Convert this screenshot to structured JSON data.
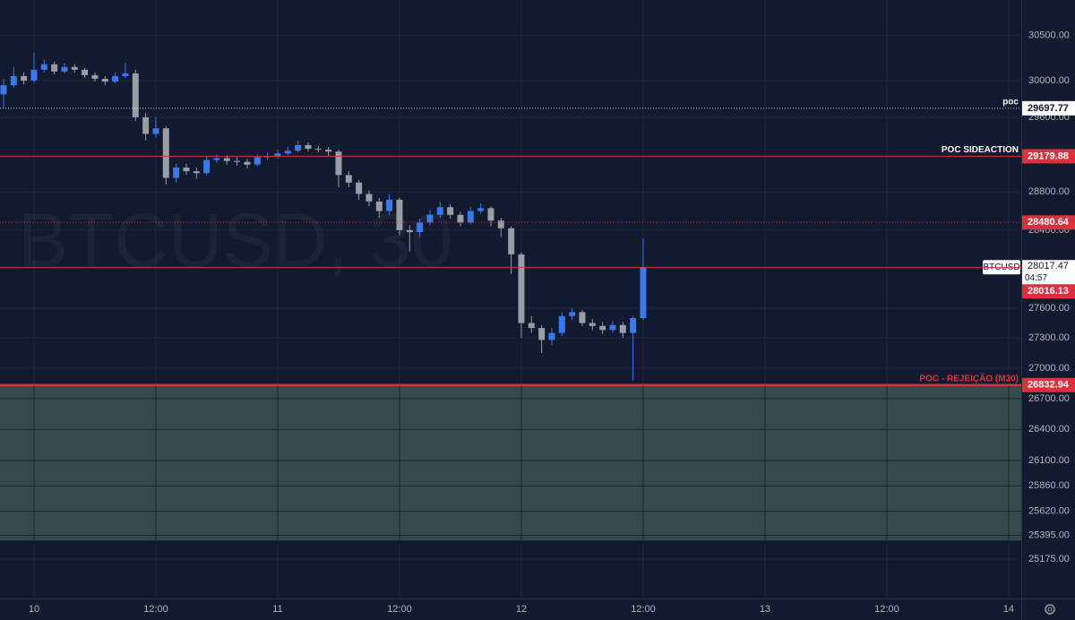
{
  "chart_data": {
    "type": "candlestick",
    "watermark": "BTCUSD, 30",
    "log": true,
    "grid": true,
    "up_color": "#3a78ee",
    "down_color": "#9a9ca6",
    "x": [
      -3,
      -2,
      -1,
      0,
      1,
      2,
      3,
      4,
      5,
      6,
      7,
      8,
      9,
      10,
      11,
      12,
      13,
      14,
      15,
      16,
      17,
      18,
      19,
      20,
      21,
      22,
      23,
      24,
      25,
      26,
      27,
      28,
      29,
      30,
      31,
      32,
      33,
      34,
      35,
      36,
      37,
      38,
      39,
      40,
      41,
      42,
      43,
      44,
      45,
      46,
      47,
      48,
      49,
      50,
      51,
      52,
      53,
      54,
      55,
      56,
      57,
      58,
      59,
      60
    ],
    "open": [
      29850,
      29950,
      30050,
      30000,
      30120,
      30180,
      30100,
      30150,
      30120,
      30060,
      30020,
      29990,
      30050,
      30080,
      29600,
      29420,
      29480,
      28950,
      29060,
      29020,
      29000,
      29140,
      29160,
      29130,
      29120,
      29090,
      29170,
      29180,
      29210,
      29240,
      29300,
      29260,
      29250,
      29230,
      28980,
      28900,
      28780,
      28700,
      28600,
      28720,
      28400,
      28380,
      28480,
      28560,
      28640,
      28560,
      28480,
      28600,
      28630,
      28500,
      28420,
      28150,
      27450,
      27400,
      27280,
      27350,
      27520,
      27560,
      27450,
      27420,
      27380,
      27430,
      27350,
      27500
    ],
    "high": [
      30020,
      30150,
      30090,
      30310,
      30230,
      30210,
      30190,
      30180,
      30140,
      30090,
      30050,
      30090,
      30200,
      30120,
      29650,
      29600,
      29500,
      29100,
      29100,
      29060,
      29180,
      29200,
      29190,
      29170,
      29150,
      29200,
      29220,
      29250,
      29280,
      29350,
      29330,
      29290,
      29280,
      29250,
      29020,
      28930,
      28820,
      28740,
      28780,
      28740,
      28450,
      28520,
      28610,
      28700,
      28670,
      28590,
      28640,
      28680,
      28650,
      28530,
      28440,
      28170,
      27520,
      27430,
      27400,
      27560,
      27600,
      27580,
      27490,
      27460,
      27470,
      27460,
      27520,
      28310
    ],
    "low": [
      29700,
      29920,
      29960,
      29980,
      30090,
      30070,
      30080,
      30090,
      30030,
      29990,
      29950,
      29970,
      30030,
      29560,
      29350,
      29380,
      28880,
      28900,
      28980,
      28940,
      28980,
      29110,
      29090,
      29080,
      29050,
      29070,
      29140,
      29160,
      29190,
      29220,
      29230,
      29220,
      29180,
      28850,
      28850,
      28720,
      28650,
      28530,
      28560,
      28350,
      28180,
      28330,
      28450,
      28530,
      28520,
      28440,
      28460,
      28570,
      28440,
      28330,
      27950,
      27300,
      27350,
      27150,
      27230,
      27320,
      27480,
      27420,
      27380,
      27340,
      27350,
      27300,
      26880,
      27480
    ],
    "close": [
      29950,
      30050,
      30000,
      30120,
      30180,
      30100,
      30150,
      30120,
      30060,
      30020,
      29990,
      30050,
      30080,
      29600,
      29420,
      29480,
      28950,
      29060,
      29020,
      29000,
      29140,
      29160,
      29130,
      29120,
      29090,
      29170,
      29180,
      29210,
      29240,
      29300,
      29260,
      29250,
      29230,
      28980,
      28900,
      28780,
      28700,
      28600,
      28720,
      28400,
      28380,
      28480,
      28560,
      28640,
      28560,
      28480,
      28600,
      28630,
      28500,
      28420,
      28150,
      27450,
      27400,
      27280,
      27350,
      27520,
      27560,
      27450,
      27420,
      27380,
      27430,
      27350,
      27500,
      28017.47
    ],
    "xlim": [
      -3.35,
      97.24
    ],
    "xticks": [
      {
        "value": 0,
        "label": "10"
      },
      {
        "value": 12,
        "label": "12:00"
      },
      {
        "value": 24,
        "label": "11"
      },
      {
        "value": 36,
        "label": "12:00"
      },
      {
        "value": 48,
        "label": "12"
      },
      {
        "value": 60,
        "label": "12:00"
      },
      {
        "value": 72,
        "label": "13"
      },
      {
        "value": 84,
        "label": "12:00"
      },
      {
        "value": 96,
        "label": "14"
      }
    ],
    "ylim": [
      24814,
      30900
    ],
    "yticks": [
      {
        "value": 30500,
        "label": "30500.00"
      },
      {
        "value": 30000,
        "label": "30000.00"
      },
      {
        "value": 29600,
        "label": "29600.00"
      },
      {
        "value": 28800,
        "label": "28800.00"
      },
      {
        "value": 28400,
        "label": "28400.00"
      },
      {
        "value": 27600,
        "label": "27600.00"
      },
      {
        "value": 27300,
        "label": "27300.00"
      },
      {
        "value": 27000,
        "label": "27000.00"
      },
      {
        "value": 26700,
        "label": "26700.00"
      },
      {
        "value": 26400,
        "label": "26400.00"
      },
      {
        "value": 26100,
        "label": "26100.00"
      },
      {
        "value": 25860,
        "label": "25860.00"
      },
      {
        "value": 25620,
        "label": "25620.00"
      },
      {
        "value": 25395,
        "label": "25395.00"
      },
      {
        "value": 25175,
        "label": "25175.00"
      }
    ],
    "zone": {
      "from": 26832.94,
      "to": 25347,
      "color": "#34494a"
    },
    "levels": [
      {
        "label": "poc",
        "value": 29697.77,
        "color": "#ffffff",
        "style": "dotted",
        "text_color": "#ffffff"
      },
      {
        "label": "POC SIDEACTION",
        "value": 29179.88,
        "color": "#d8313f",
        "style": "solid",
        "text_color": "#ffffff"
      },
      {
        "value": 28480.64,
        "color": "#d8313f",
        "style": "dotted"
      },
      {
        "value": 28016.13,
        "color": "#d8313f",
        "style": "solid"
      },
      {
        "label": "POC - REJEIÇÃO (M30)",
        "value": 26832.94,
        "color": "#d8313f",
        "style": "thick",
        "text_color": "#e0313d"
      }
    ],
    "last_price": {
      "symbol": "BTCUSD",
      "value": 28017.47,
      "countdown": "04:57"
    }
  }
}
